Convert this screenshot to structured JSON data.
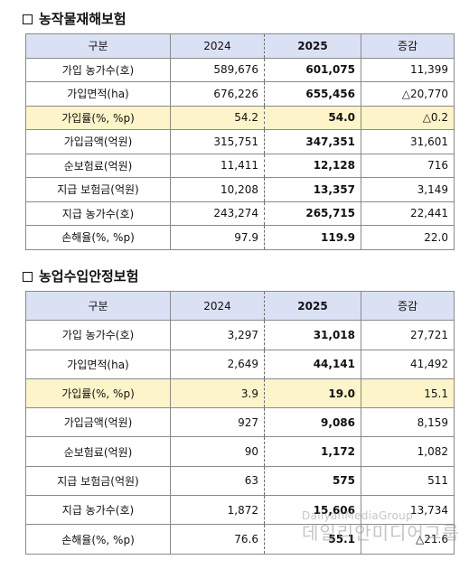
{
  "sections": [
    {
      "title": "농작물재해보험",
      "headers": [
        "구분",
        "2024",
        "2025",
        "증감"
      ],
      "rows": [
        {
          "label": "가입 농가수(호)",
          "v2024": "589,676",
          "v2025": "601,075",
          "change": "11,399"
        },
        {
          "label": "가입면적(ha)",
          "v2024": "676,226",
          "v2025": "655,456",
          "change": "△20,770"
        },
        {
          "label": "가입률(%, %p)",
          "v2024": "54.2",
          "v2025": "54.0",
          "change": "△0.2"
        },
        {
          "label": "가입금액(억원)",
          "v2024": "315,751",
          "v2025": "347,351",
          "change": "31,601"
        },
        {
          "label": "순보험료(억원)",
          "v2024": "11,411",
          "v2025": "12,128",
          "change": "716"
        },
        {
          "label": "지급 보험금(억원)",
          "v2024": "10,208",
          "v2025": "13,357",
          "change": "3,149"
        },
        {
          "label": "지급 농가수(호)",
          "v2024": "243,274",
          "v2025": "265,715",
          "change": "22,441"
        },
        {
          "label": "손해율(%, %p)",
          "v2024": "97.9",
          "v2025": "119.9",
          "change": "22.0"
        }
      ]
    },
    {
      "title": "농업수입안정보험",
      "headers": [
        "구분",
        "2024",
        "2025",
        "증감"
      ],
      "rows": [
        {
          "label": "가입 농가수(호)",
          "v2024": "3,297",
          "v2025": "31,018",
          "change": "27,721"
        },
        {
          "label": "가입면적(ha)",
          "v2024": "2,649",
          "v2025": "44,141",
          "change": "41,492"
        },
        {
          "label": "가입률(%, %p)",
          "v2024": "3.9",
          "v2025": "19.0",
          "change": "15.1"
        },
        {
          "label": "가입금액(억원)",
          "v2024": "927",
          "v2025": "9,086",
          "change": "8,159"
        },
        {
          "label": "순보험료(억원)",
          "v2024": "90",
          "v2025": "1,172",
          "change": "1,082"
        },
        {
          "label": "지급 보험금(억원)",
          "v2024": "63",
          "v2025": "575",
          "change": "511"
        },
        {
          "label": "지급 농가수(호)",
          "v2024": "1,872",
          "v2025": "15,606",
          "change": "13,734"
        },
        {
          "label": "손해율(%, %p)",
          "v2024": "76.6",
          "v2025": "55.1",
          "change": "△21.6"
        }
      ]
    }
  ],
  "highlight_color": "#fdf5c9",
  "header_color": "#dbe1f4",
  "watermark": {
    "en": "DailyanMediaGroup",
    "ko": "데일리안미디어그룹"
  }
}
